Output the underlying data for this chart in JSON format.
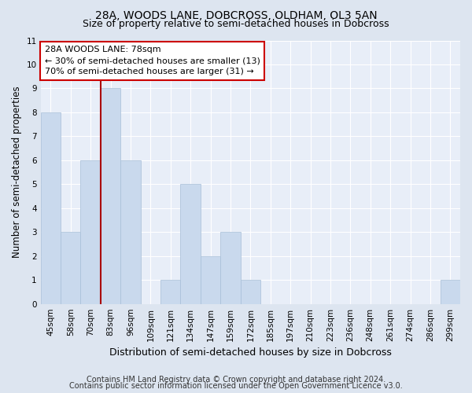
{
  "title1": "28A, WOODS LANE, DOBCROSS, OLDHAM, OL3 5AN",
  "title2": "Size of property relative to semi-detached houses in Dobcross",
  "xlabel": "Distribution of semi-detached houses by size in Dobcross",
  "ylabel": "Number of semi-detached properties",
  "footer1": "Contains HM Land Registry data © Crown copyright and database right 2024.",
  "footer2": "Contains public sector information licensed under the Open Government Licence v3.0.",
  "categories": [
    "45sqm",
    "58sqm",
    "70sqm",
    "83sqm",
    "96sqm",
    "109sqm",
    "121sqm",
    "134sqm",
    "147sqm",
    "159sqm",
    "172sqm",
    "185sqm",
    "197sqm",
    "210sqm",
    "223sqm",
    "236sqm",
    "248sqm",
    "261sqm",
    "274sqm",
    "286sqm",
    "299sqm"
  ],
  "values": [
    8,
    3,
    6,
    9,
    6,
    0,
    1,
    5,
    2,
    3,
    1,
    0,
    0,
    0,
    0,
    0,
    0,
    0,
    0,
    0,
    1
  ],
  "bar_color": "#c9d9ed",
  "bar_edge_color": "#a8bfd8",
  "subject_line_color": "#aa0000",
  "annotation_box_color": "#ffffff",
  "annotation_box_edge": "#cc0000",
  "subject_label": "28A WOODS LANE: 78sqm",
  "annotation_line1": "← 30% of semi-detached houses are smaller (13)",
  "annotation_line2": "70% of semi-detached houses are larger (31) →",
  "ylim": [
    0,
    11
  ],
  "yticks": [
    0,
    1,
    2,
    3,
    4,
    5,
    6,
    7,
    8,
    9,
    10,
    11
  ],
  "bg_color": "#dde5f0",
  "plot_bg_color": "#e8eef8",
  "grid_color": "#ffffff",
  "title1_fontsize": 10,
  "title2_fontsize": 9,
  "xlabel_fontsize": 9,
  "ylabel_fontsize": 8.5,
  "tick_fontsize": 7.5,
  "footer_fontsize": 7,
  "annot_fontsize": 8
}
